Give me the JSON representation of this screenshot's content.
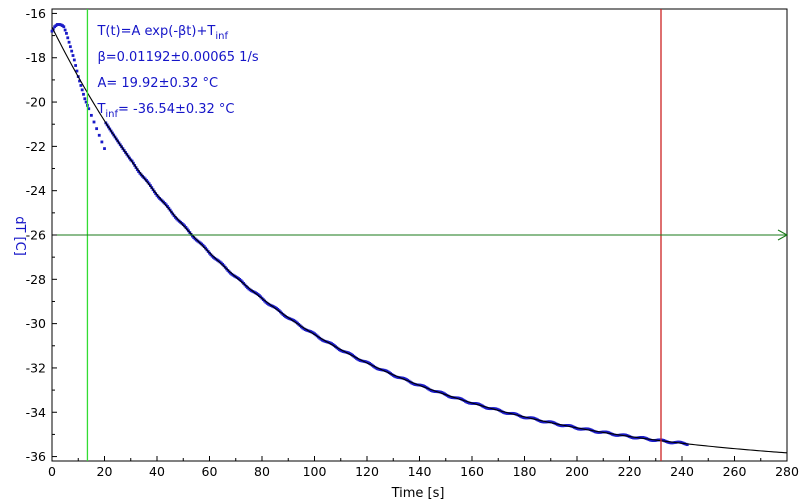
{
  "chart_data": {
    "type": "scatter",
    "title": "",
    "xlabel": "Time [s]",
    "ylabel": "dT [C]",
    "xlim": [
      0,
      280
    ],
    "ylim": [
      -36.2,
      -15.8
    ],
    "xticks": [
      0,
      20,
      40,
      60,
      80,
      100,
      120,
      140,
      160,
      180,
      200,
      220,
      240,
      260,
      280
    ],
    "yticks": [
      -16,
      -18,
      -20,
      -22,
      -24,
      -26,
      -28,
      -30,
      -32,
      -34,
      -36
    ],
    "grid": false,
    "legend": "none",
    "annotations": [
      {
        "key": "model",
        "text": "T(t)=A exp(-βt)+T",
        "sub": "inf"
      },
      {
        "key": "beta",
        "text": "β=0.01192±0.00065 1/s"
      },
      {
        "key": "amp",
        "text": "A= 19.92±0.32 °C"
      },
      {
        "key": "tinf",
        "text": "T",
        "sub": "inf",
        "rest": "= -36.54±0.32 °C"
      }
    ],
    "fit": {
      "A": 19.92,
      "beta": 0.01192,
      "Tinf": -36.54,
      "x_range": [
        0,
        280
      ]
    },
    "markers": {
      "left_vline_x": 13.5,
      "right_vline_x": 232,
      "hline_y": -26.0
    },
    "colors": {
      "data": "#1a1ac8",
      "fit": "#000000",
      "left_vline": "#33dd33",
      "right_vline": "#cc2222",
      "hline": "#1a7a1a",
      "axis_label": "#1515c8"
    },
    "series": [
      {
        "x": [
          0,
          0.5,
          1,
          1.5,
          2,
          2.5,
          3,
          3.5,
          4,
          4.5,
          5,
          5.5,
          6,
          6.5,
          7,
          7.5,
          8,
          8.5,
          9,
          9.5,
          10,
          10.5,
          11,
          11.5,
          12,
          12.5,
          13,
          13.5,
          14,
          15,
          16,
          17,
          18,
          19,
          20
        ],
        "y": [
          -16.8,
          -16.7,
          -16.6,
          -16.55,
          -16.5,
          -16.5,
          -16.5,
          -16.52,
          -16.55,
          -16.6,
          -16.75,
          -16.9,
          -17.1,
          -17.3,
          -17.5,
          -17.7,
          -17.9,
          -18.1,
          -18.35,
          -18.6,
          -18.85,
          -19.05,
          -19.25,
          -19.45,
          -19.65,
          -19.85,
          -20.0,
          -20.15,
          -20.3,
          -20.6,
          -20.9,
          -21.2,
          -21.5,
          -21.8,
          -22.1
        ]
      }
    ],
    "data_x_end": 242
  }
}
